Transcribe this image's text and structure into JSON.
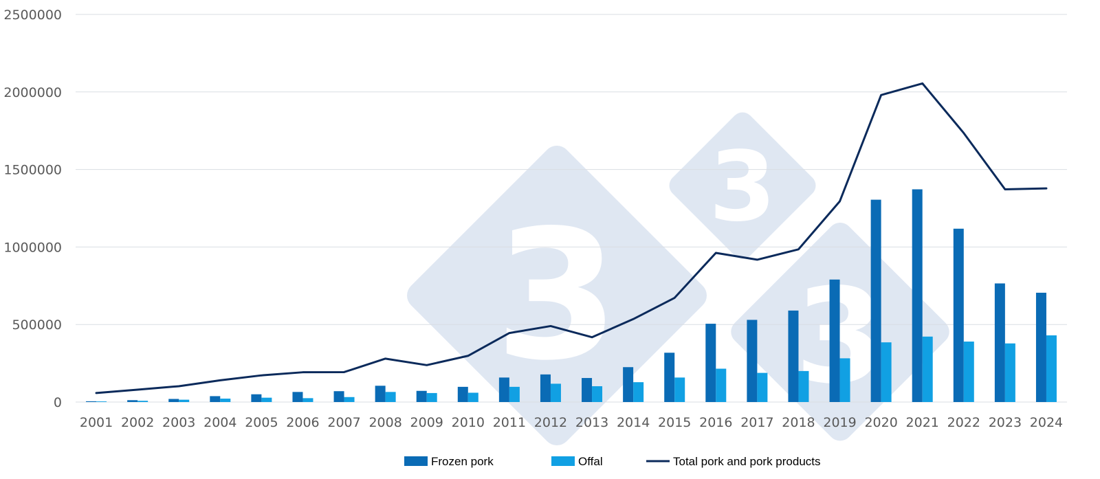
{
  "chart_data": {
    "type": "bar",
    "title": "",
    "xlabel": "",
    "ylabel": "",
    "ylim": [
      0,
      2500000
    ],
    "yticks": [
      0,
      500000,
      1000000,
      1500000,
      2000000,
      2500000
    ],
    "ytick_labels": [
      "0",
      "500000",
      "1000000",
      "1500000",
      "2000000",
      "2500000"
    ],
    "grid": true,
    "legend_position": "bottom",
    "categories": [
      "2001",
      "2002",
      "2003",
      "2004",
      "2005",
      "2006",
      "2007",
      "2008",
      "2009",
      "2010",
      "2011",
      "2012",
      "2013",
      "2014",
      "2015",
      "2016",
      "2017",
      "2018",
      "2019",
      "2020",
      "2021",
      "2022",
      "2023",
      "2024"
    ],
    "series": [
      {
        "name": "Frozen pork",
        "kind": "bar",
        "color": "#0a6bb5",
        "values": [
          5000,
          12000,
          20000,
          38000,
          50000,
          65000,
          70000,
          105000,
          72000,
          98000,
          158000,
          178000,
          155000,
          225000,
          318000,
          505000,
          530000,
          590000,
          790000,
          1305000,
          1372000,
          1118000,
          765000,
          705000
        ]
      },
      {
        "name": "Offal",
        "kind": "bar",
        "color": "#11a0e3",
        "values": [
          4000,
          8000,
          15000,
          22000,
          28000,
          25000,
          32000,
          65000,
          58000,
          60000,
          98000,
          118000,
          102000,
          128000,
          158000,
          215000,
          188000,
          200000,
          282000,
          385000,
          422000,
          390000,
          378000,
          430000
        ]
      },
      {
        "name": "Total pork and pork products",
        "kind": "line",
        "color": "#0b2a5b",
        "values": [
          58000,
          80000,
          102000,
          140000,
          172000,
          192000,
          193000,
          280000,
          238000,
          298000,
          445000,
          490000,
          418000,
          535000,
          672000,
          962000,
          918000,
          985000,
          1295000,
          1980000,
          2055000,
          1735000,
          1372000,
          1378000
        ]
      }
    ]
  },
  "watermark": {
    "symbol": "3",
    "color": "#dfe7f2"
  }
}
